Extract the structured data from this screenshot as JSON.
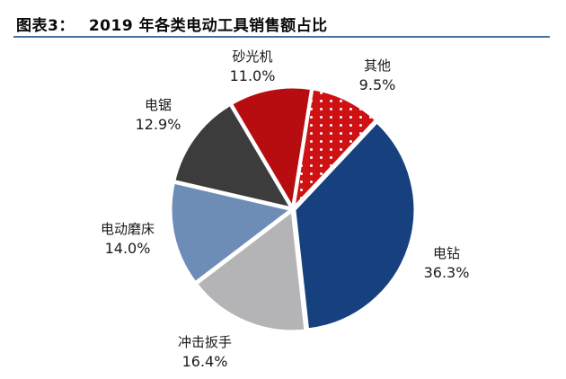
{
  "header": {
    "label": "图表3：",
    "title": "2019 年各类电动工具销售额占比"
  },
  "theme": {
    "underline_color": "#44739E",
    "background": "#FFFFFF",
    "label_text_color": "#1A1A1A"
  },
  "chart_data": {
    "type": "pie",
    "title": "2019 年各类电动工具销售额占比",
    "start_angle_deg": 9,
    "direction": "clockwise",
    "legend_position": "none",
    "labels_outside": true,
    "slices": [
      {
        "label": "其他",
        "value": 9.5,
        "pct_label": "9.5%",
        "color": "#CE1213",
        "pattern": "white-dots"
      },
      {
        "label": "电钻",
        "value": 36.3,
        "pct_label": "36.3%",
        "color": "#17417E",
        "pattern": "solid"
      },
      {
        "label": "冲击扳手",
        "value": 16.4,
        "pct_label": "16.4%",
        "color": "#B4B4B6",
        "pattern": "solid"
      },
      {
        "label": "电动磨床",
        "value": 14.0,
        "pct_label": "14.0%",
        "color": "#6E8DB6",
        "pattern": "solid"
      },
      {
        "label": "电锯",
        "value": 12.9,
        "pct_label": "12.9%",
        "color": "#3C3C3C",
        "pattern": "solid"
      },
      {
        "label": "砂光机",
        "value": 11.0,
        "pct_label": "11.0%",
        "color": "#B70D11",
        "pattern": "solid"
      }
    ]
  }
}
